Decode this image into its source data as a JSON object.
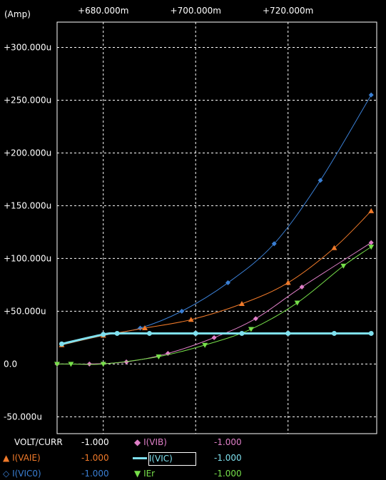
{
  "chart_data": {
    "type": "line",
    "unit_label": "(Amp)",
    "x_ticks": [
      {
        "value": 680,
        "label": "+680.000m"
      },
      {
        "value": 700,
        "label": "+700.000m"
      },
      {
        "value": 720,
        "label": "+720.000m"
      }
    ],
    "y_ticks": [
      {
        "value": 300,
        "label": "+300.000u"
      },
      {
        "value": 250,
        "label": "+250.000u"
      },
      {
        "value": 200,
        "label": "+200.000u"
      },
      {
        "value": 150,
        "label": "+150.000u"
      },
      {
        "value": 100,
        "label": "+100.000u"
      },
      {
        "value": 50,
        "label": "+50.000u"
      },
      {
        "value": 0,
        "label": "0.0"
      },
      {
        "value": -50,
        "label": "-50.000u"
      }
    ],
    "xlim": [
      670,
      739.2
    ],
    "ylim": [
      -66,
      324
    ],
    "grid": true,
    "series": [
      {
        "name": "I(VIC0)",
        "color": "#3a7fd4",
        "marker": "diamond",
        "points": [
          [
            671,
            19
          ],
          [
            680,
            27
          ],
          [
            688,
            34
          ],
          [
            697,
            50
          ],
          [
            707,
            77
          ],
          [
            717,
            114
          ],
          [
            727,
            174
          ],
          [
            738,
            255
          ]
        ]
      },
      {
        "name": "I(VAIE)",
        "color": "#f07a2a",
        "marker": "triangle",
        "points": [
          [
            671,
            18
          ],
          [
            680,
            27
          ],
          [
            689,
            34
          ],
          [
            699,
            42
          ],
          [
            710,
            57
          ],
          [
            720,
            77
          ],
          [
            730,
            110
          ],
          [
            738,
            145
          ]
        ]
      },
      {
        "name": "I(VIB)",
        "color": "#e07fc8",
        "marker": "diamond",
        "points": [
          [
            670,
            0
          ],
          [
            677,
            0
          ],
          [
            685,
            2
          ],
          [
            694,
            10
          ],
          [
            704,
            25
          ],
          [
            713,
            43
          ],
          [
            723,
            73
          ],
          [
            738,
            115
          ]
        ]
      },
      {
        "name": "IEr",
        "color": "#77e04a",
        "marker": "triangle-down",
        "points": [
          [
            670,
            0
          ],
          [
            673,
            0
          ],
          [
            680,
            0
          ],
          [
            692,
            7
          ],
          [
            702,
            18
          ],
          [
            712,
            33
          ],
          [
            722,
            58
          ],
          [
            732,
            93
          ],
          [
            738,
            111
          ]
        ]
      },
      {
        "name": "I(VIC)",
        "color": "#7fe0ee",
        "marker": "circle",
        "points": [
          [
            671,
            19
          ],
          [
            680,
            28
          ],
          [
            683,
            29
          ],
          [
            690,
            29
          ],
          [
            700,
            29
          ],
          [
            710,
            29
          ],
          [
            720,
            29
          ],
          [
            730,
            29
          ],
          [
            738,
            29
          ]
        ]
      }
    ]
  },
  "legend": {
    "header_label": "VOLT/CURR",
    "header_value": "-1.000",
    "items": [
      {
        "label": "I(VIB)",
        "value": "-1.000",
        "color": "#e07fc8",
        "value_color": "#e07fc8",
        "marker": "diamond"
      },
      {
        "label": "I(VAIE)",
        "value": "-1.000",
        "color": "#f07a2a",
        "value_color": "#f07a2a",
        "marker": "triangle"
      },
      {
        "label": "I(VIC)",
        "value": "-1.000",
        "color": "#7fe0ee",
        "value_color": "#7fe0ee",
        "marker": "circle"
      },
      {
        "label": "I(VIC0)",
        "value": "-1.000",
        "color": "#3a7fd4",
        "value_color": "#3a7fd4",
        "marker": "diamond"
      },
      {
        "label": "IEr",
        "value": "-1.000",
        "color": "#77e04a",
        "value_color": "#77e04a",
        "marker": "triangle-down"
      }
    ]
  }
}
